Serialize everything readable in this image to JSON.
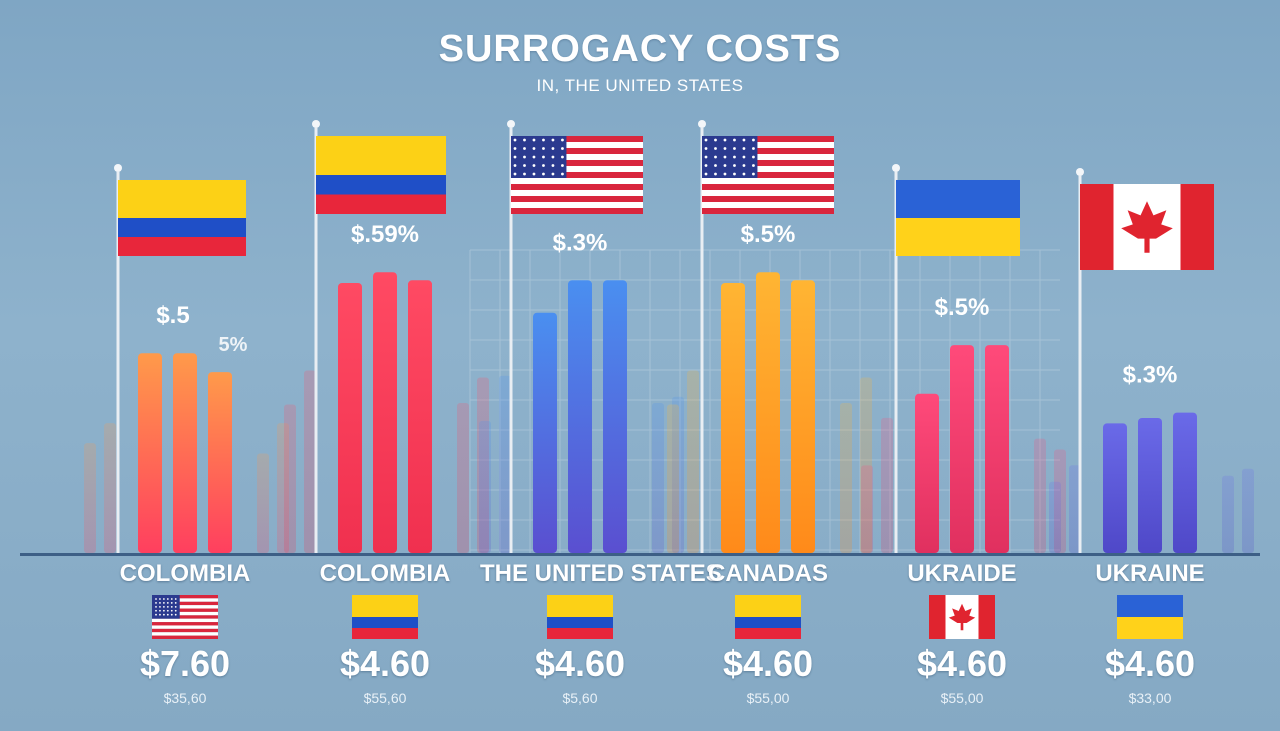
{
  "chart_data": {
    "type": "bar",
    "title": "SURROGACY COSTS",
    "subtitle": "IN, THE UNITED STATES",
    "xlabel": "",
    "ylabel": "",
    "ylim": [
      0,
      100
    ],
    "grid": false,
    "groups": [
      {
        "label": "COLOMBIA",
        "value_label": "$.5",
        "value_label_2": "5%",
        "price": "$7.60",
        "sub_price": "$35,60",
        "pole_flag": "colombia-flag",
        "small_flag": "usa-flag",
        "values": [
          74,
          74,
          67
        ],
        "color_top": "#ff9a4a",
        "color_bottom": "#ff3f5f"
      },
      {
        "label": "COLOMBIA",
        "value_label": "$.59%",
        "price": "$4.60",
        "sub_price": "$55,60",
        "pole_flag": "colombia-flag",
        "small_flag": "colombia-flag",
        "values": [
          100,
          104,
          101
        ],
        "color_top": "#ff4a63",
        "color_bottom": "#f0304f"
      },
      {
        "label": "THE UNITED STATES",
        "value_label": "$.3%",
        "price": "$4.60",
        "sub_price": "$5,60",
        "pole_flag": "usa-flag",
        "small_flag": "colombia-flag",
        "values": [
          89,
          101,
          101
        ],
        "color_top": "#4a8ff0",
        "color_bottom": "#5a4fd0"
      },
      {
        "label": "CANADAS",
        "value_label": "$.5%",
        "price": "$4.60",
        "sub_price": "$55,00",
        "pole_flag": "usa-flag",
        "small_flag": "colombia-flag",
        "values": [
          100,
          104,
          101
        ],
        "color_top": "#ffb533",
        "color_bottom": "#ff8a1a"
      },
      {
        "label": "UKRAIDE",
        "value_label": "$.5%",
        "price": "$4.60",
        "sub_price": "$55,00",
        "pole_flag": "ukraine-flag",
        "small_flag": "canada-flag",
        "values": [
          59,
          77,
          77
        ],
        "color_top": "#ff4a7a",
        "color_bottom": "#e0305f"
      },
      {
        "label": "UKRAINE",
        "value_label": "$.3%",
        "price": "$4.60",
        "sub_price": "$33,00",
        "pole_flag": "canada-flag",
        "small_flag": "ukraine-flag",
        "values": [
          48,
          50,
          52
        ],
        "color_top": "#6a6ae8",
        "color_bottom": "#4f48c8"
      }
    ]
  }
}
